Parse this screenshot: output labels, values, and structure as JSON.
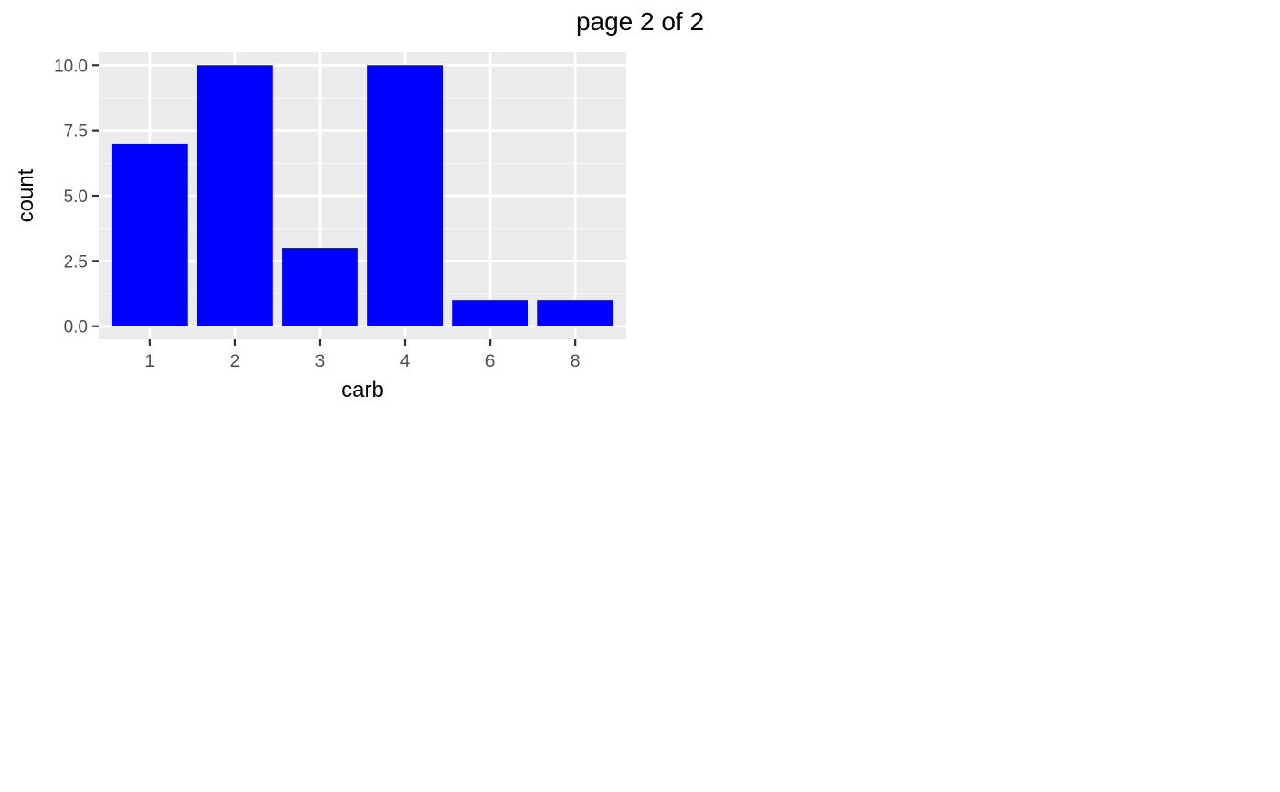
{
  "page": {
    "title": "page 2 of 2"
  },
  "colors": {
    "panel_background": "#ebebeb",
    "grid_major": "#ffffff",
    "grid_minor": "#f5f5f5",
    "bar_fill": "#0000ff",
    "tick_text": "#4d4d4d",
    "tick_mark": "#333333"
  },
  "chart_data": {
    "type": "bar",
    "title": "",
    "xlabel": "carb",
    "ylabel": "count",
    "categories": [
      "1",
      "2",
      "3",
      "4",
      "6",
      "8"
    ],
    "values": [
      7,
      10,
      3,
      10,
      1,
      1
    ],
    "ylim": [
      -0.5,
      10.5
    ],
    "yticks": [
      0,
      2.5,
      5,
      7.5,
      10
    ],
    "ytick_labels": [
      "0.0",
      "2.5",
      "5.0",
      "7.5",
      "10.0"
    ],
    "grid": true,
    "legend": "none"
  }
}
